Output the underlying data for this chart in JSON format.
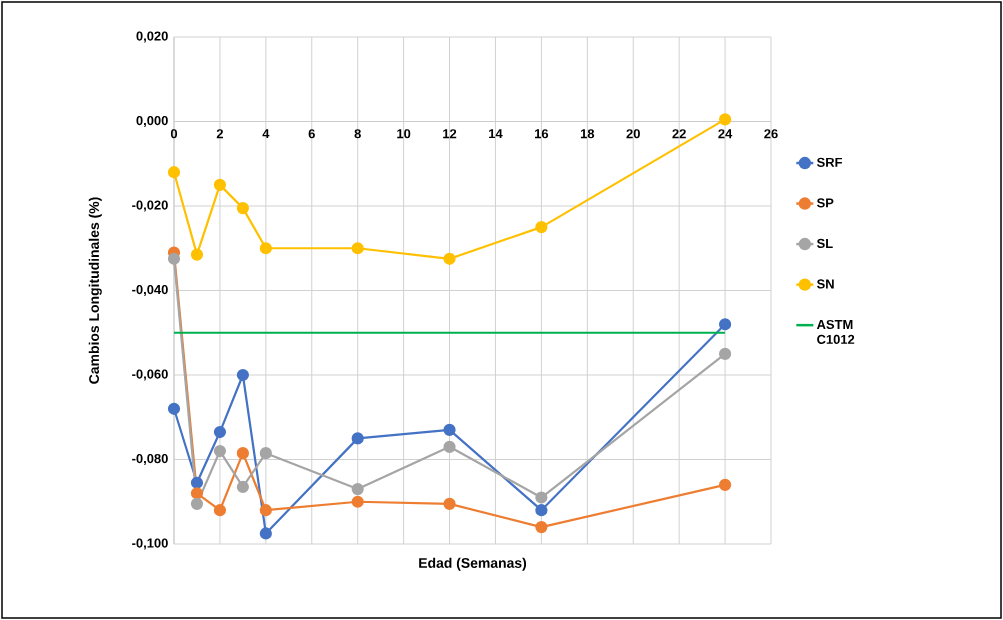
{
  "chart_data": {
    "type": "line",
    "xlabel": "Edad (Semanas)",
    "ylabel": "Cambios Longitudinales (%)",
    "xlim": [
      0,
      26
    ],
    "xticks": [
      0,
      2,
      4,
      6,
      8,
      10,
      12,
      14,
      16,
      18,
      20,
      22,
      24,
      26
    ],
    "ylim": [
      -0.1,
      0.02
    ],
    "yticks": [
      {
        "value": -0.1,
        "label": "-0,100"
      },
      {
        "value": -0.08,
        "label": "-0,080"
      },
      {
        "value": -0.06,
        "label": "-0,060"
      },
      {
        "value": -0.04,
        "label": "-0,040"
      },
      {
        "value": -0.02,
        "label": "-0,020"
      },
      {
        "value": 0,
        "label": "0,000"
      },
      {
        "value": 0.02,
        "label": "0,020"
      }
    ],
    "x": [
      0,
      1,
      2,
      3,
      4,
      8,
      12,
      16,
      24
    ],
    "series": [
      {
        "name": "SRF",
        "color": "#4472c4",
        "values": [
          -0.068,
          -0.0855,
          -0.0735,
          -0.06,
          -0.0975,
          -0.075,
          -0.073,
          -0.092,
          -0.048
        ]
      },
      {
        "name": "SP",
        "color": "#ed7d31",
        "values": [
          -0.031,
          -0.088,
          -0.092,
          -0.0785,
          -0.092,
          -0.09,
          -0.0905,
          -0.096,
          -0.086
        ]
      },
      {
        "name": "SL",
        "color": "#a5a5a5",
        "values": [
          -0.0325,
          -0.0905,
          -0.078,
          -0.0865,
          -0.0785,
          -0.087,
          -0.077,
          -0.089,
          -0.055
        ]
      },
      {
        "name": "SN",
        "color": "#ffc000",
        "values": [
          -0.012,
          -0.0315,
          -0.015,
          -0.0205,
          -0.03,
          -0.03,
          -0.0325,
          -0.025,
          0.0005
        ]
      },
      {
        "name": "ASTM C1012",
        "color": "#00b050",
        "x": [
          0,
          24
        ],
        "values": [
          -0.05,
          -0.05
        ],
        "marker": "none"
      }
    ],
    "marker": "circle",
    "line_style": "solid",
    "grid": true,
    "legend": "right"
  }
}
